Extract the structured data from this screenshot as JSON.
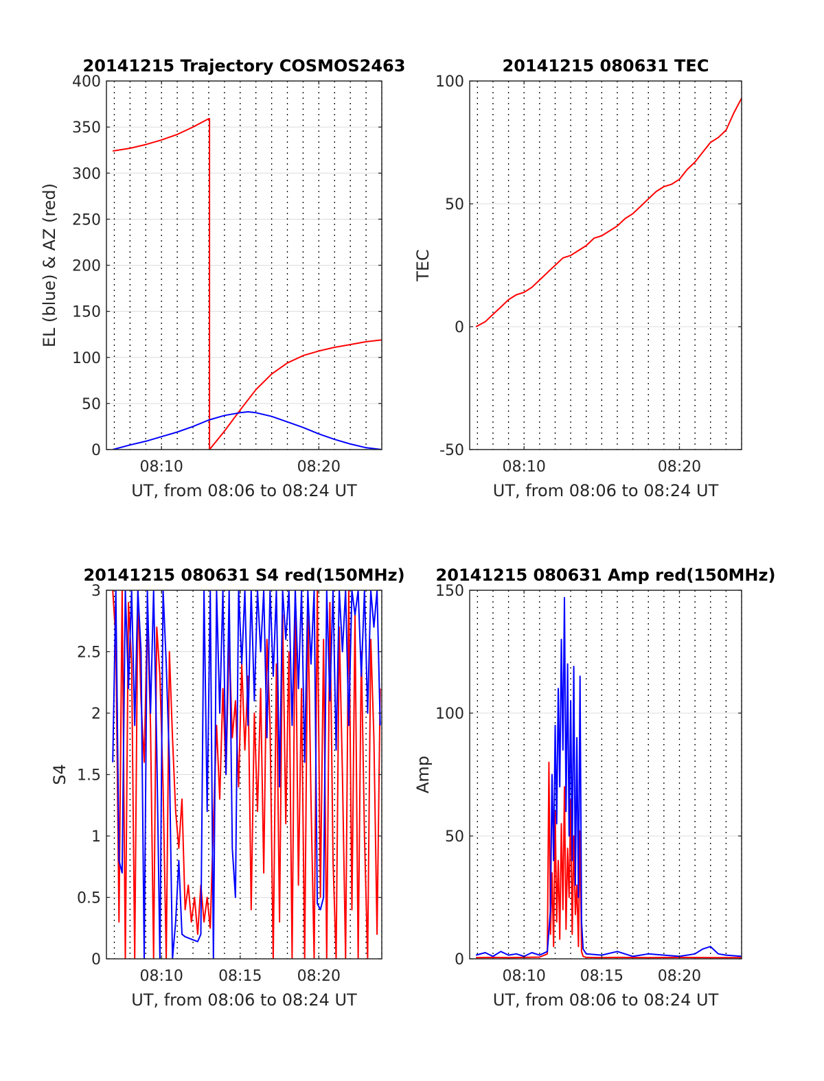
{
  "chart_data": [
    {
      "type": "line",
      "title": "20141215 Trajectory COSMOS2463",
      "xlabel": "UT, from 08:06 to 08:24 UT",
      "ylabel": "EL (blue) & AZ (red)",
      "xlim": [
        6.5,
        24
      ],
      "ylim": [
        0,
        400
      ],
      "xtick_values": [
        10,
        20
      ],
      "xtick_labels": [
        "08:10",
        "08:20"
      ],
      "ytick_values": [
        0,
        50,
        100,
        150,
        200,
        250,
        300,
        350,
        400
      ],
      "ytick_labels": [
        "0",
        "50",
        "100",
        "150",
        "200",
        "250",
        "300",
        "350",
        "400"
      ],
      "grid": true,
      "colors": {
        "EL": "#0000ff",
        "AZ": "#ff0000"
      },
      "series": [
        {
          "key": "AZ",
          "color": "#ff0000",
          "x": [
            6.9,
            8,
            9,
            10,
            11,
            12,
            13.0,
            13.05,
            13.05,
            14,
            15,
            16,
            17,
            18,
            19,
            20,
            21,
            22,
            23,
            24
          ],
          "y": [
            324,
            327,
            331,
            336,
            342,
            350,
            359,
            359,
            0,
            20,
            43,
            65,
            82,
            94,
            102,
            107,
            111,
            114,
            117,
            119
          ]
        },
        {
          "key": "EL",
          "color": "#0000ff",
          "x": [
            6.9,
            8,
            9,
            10,
            11,
            12,
            13,
            14,
            15,
            15.5,
            16,
            17,
            18,
            19,
            20,
            21,
            22,
            23,
            24
          ],
          "y": [
            0,
            5,
            9,
            14,
            19,
            25,
            32,
            37,
            40,
            41,
            40,
            36,
            30,
            24,
            17,
            11,
            6,
            2,
            0
          ]
        }
      ]
    },
    {
      "type": "line",
      "title": "20141215 080631 TEC",
      "xlabel": "UT, from 08:06 to 08:24 UT",
      "ylabel": "TEC",
      "xlim": [
        6.5,
        24
      ],
      "ylim": [
        -50,
        100
      ],
      "xtick_values": [
        10,
        20
      ],
      "xtick_labels": [
        "08:10",
        "08:20"
      ],
      "ytick_values": [
        -50,
        0,
        50,
        100
      ],
      "ytick_labels": [
        "-50",
        "0",
        "50",
        "100"
      ],
      "grid": true,
      "series": [
        {
          "color": "#ff0000",
          "x": [
            6.9,
            7.5,
            8,
            8.5,
            9,
            9.5,
            10,
            10.5,
            11,
            11.5,
            12,
            12.5,
            13,
            13.5,
            14,
            14.5,
            15,
            15.5,
            16,
            16.5,
            17,
            17.5,
            18,
            18.5,
            19,
            19.5,
            20,
            20.5,
            21,
            21.5,
            22,
            22.5,
            23,
            23.5,
            24
          ],
          "y": [
            0,
            2,
            5,
            8,
            11,
            13,
            14,
            16,
            19,
            22,
            25,
            28,
            29,
            31,
            33,
            36,
            37,
            39,
            41,
            44,
            46,
            49,
            52,
            55,
            57,
            58,
            60,
            64,
            67,
            71,
            75,
            77,
            80,
            87,
            93
          ]
        }
      ]
    },
    {
      "type": "line",
      "title": "20141215 080631 S4 red(150MHz)",
      "xlabel": "UT, from 08:06 to 08:24 UT",
      "ylabel": "S4",
      "xlim": [
        6.5,
        24
      ],
      "ylim": [
        0,
        3
      ],
      "xtick_values": [
        10,
        15,
        20
      ],
      "xtick_labels": [
        "08:10",
        "08:15",
        "08:20"
      ],
      "ytick_values": [
        0,
        0.5,
        1,
        1.5,
        2,
        2.5,
        3
      ],
      "ytick_labels": [
        "0",
        "0.5",
        "1",
        "1.5",
        "2",
        "2.5",
        "3"
      ],
      "grid": true,
      "series": [
        {
          "color": "#ff0000",
          "x": [
            6.9,
            7.1,
            7.3,
            7.5,
            7.7,
            7.9,
            8.1,
            8.3,
            8.5,
            8.7,
            8.9,
            9.1,
            9.3,
            9.5,
            9.7,
            9.9,
            10.1,
            10.3,
            10.5,
            10.7,
            10.9,
            11.1,
            11.3,
            11.5,
            11.7,
            11.9,
            12.1,
            12.3,
            12.5,
            12.7,
            12.9,
            13.1,
            13.3,
            13.5,
            13.7,
            13.9,
            14.1,
            14.3,
            14.5,
            14.7,
            14.9,
            15.1,
            15.3,
            15.5,
            15.7,
            15.9,
            16.1,
            16.3,
            16.5,
            16.7,
            16.9,
            17.1,
            17.3,
            17.5,
            17.7,
            17.9,
            18.1,
            18.3,
            18.5,
            18.7,
            18.9,
            19.1,
            19.3,
            19.5,
            19.7,
            19.9,
            20.1,
            20.3,
            20.5,
            20.7,
            20.9,
            21.1,
            21.3,
            21.5,
            21.7,
            21.9,
            22.1,
            22.3,
            22.5,
            22.7,
            22.9,
            23.1,
            23.3,
            23.5,
            23.7,
            23.9
          ],
          "y": [
            3,
            2.6,
            0.3,
            3,
            0,
            2.9,
            2.4,
            0,
            3,
            2.1,
            1.6,
            2.8,
            1.9,
            0,
            2.7,
            2.3,
            1.4,
            0,
            2.5,
            1.8,
            1.2,
            0.9,
            1.3,
            0.4,
            0.6,
            0.3,
            0.5,
            0.2,
            0.6,
            0.3,
            0.5,
            0.25,
            1.1,
            1.9,
            1.3,
            2.2,
            1.5,
            2.6,
            1.8,
            2.1,
            1.4,
            2.4,
            1.7,
            2.3,
            0.4,
            2.0,
            1.2,
            2.2,
            0.7,
            2.6,
            1.9,
            0,
            2.4,
            0.3,
            2.8,
            1.1,
            2.5,
            0,
            3,
            0.6,
            2.2,
            0,
            2.9,
            1.3,
            0,
            3,
            0.5,
            2.6,
            0,
            2.9,
            0.8,
            0,
            2.7,
            1.5,
            0,
            3,
            0.4,
            2.8,
            0,
            2.5,
            1.0,
            0,
            2.6,
            1.8,
            0.2,
            2.2
          ]
        },
        {
          "color": "#0000ff",
          "x": [
            6.9,
            7.1,
            7.3,
            7.5,
            7.7,
            7.9,
            8.1,
            8.3,
            8.5,
            8.7,
            8.9,
            9.1,
            9.3,
            9.5,
            9.7,
            9.9,
            10.1,
            10.3,
            10.5,
            10.7,
            10.9,
            11.1,
            11.3,
            11.5,
            11.7,
            11.9,
            12.1,
            12.3,
            12.5,
            12.7,
            12.9,
            13.1,
            13.3,
            13.5,
            13.7,
            13.9,
            14.1,
            14.3,
            14.5,
            14.7,
            14.9,
            15.1,
            15.3,
            15.5,
            15.7,
            15.9,
            16.1,
            16.3,
            16.5,
            16.7,
            16.9,
            17.1,
            17.3,
            17.5,
            17.7,
            17.9,
            18.1,
            18.3,
            18.5,
            18.7,
            18.9,
            19.1,
            19.3,
            19.5,
            19.7,
            19.9,
            20.1,
            20.3,
            20.5,
            20.7,
            20.9,
            21.1,
            21.3,
            21.5,
            21.7,
            21.9,
            22.1,
            22.3,
            22.5,
            22.7,
            22.9,
            23.1,
            23.3,
            23.5,
            23.7,
            23.9
          ],
          "y": [
            1.6,
            3,
            0.8,
            0.7,
            3,
            2.2,
            3,
            1.9,
            3,
            2.5,
            0,
            3,
            2.0,
            3,
            1.7,
            0,
            3,
            2.4,
            1.6,
            0,
            0.3,
            0.8,
            0.2,
            0.18,
            0.17,
            0.16,
            0.15,
            0.14,
            0.2,
            3,
            1.2,
            3,
            0,
            3,
            2.0,
            3,
            1.5,
            3,
            0.9,
            0.5,
            3,
            2.4,
            3,
            1.9,
            3,
            2.1,
            3,
            2.5,
            3,
            1.8,
            3,
            2.3,
            3,
            1.4,
            3,
            2.6,
            3,
            1.9,
            3,
            2.2,
            3,
            1.6,
            3,
            2.4,
            3,
            0.45,
            0.4,
            0.5,
            3,
            2.1,
            3,
            1.7,
            3,
            2.5,
            3,
            1.9,
            3,
            2.8,
            3,
            2.3,
            3,
            2.0,
            3,
            2.7,
            3,
            1.9
          ]
        }
      ]
    },
    {
      "type": "line",
      "title": "20141215 080631 Amp red(150MHz)",
      "xlabel": "UT, from 08:06 to 08:24 UT",
      "ylabel": "Amp",
      "xlim": [
        6.5,
        24
      ],
      "ylim": [
        0,
        150
      ],
      "xtick_values": [
        10,
        15,
        20
      ],
      "xtick_labels": [
        "08:10",
        "08:15",
        "08:20"
      ],
      "ytick_values": [
        0,
        50,
        100,
        150
      ],
      "ytick_labels": [
        "0",
        "50",
        "100",
        "150"
      ],
      "grid": true,
      "series": [
        {
          "color": "#ff0000",
          "x": [
            6.9,
            8,
            9,
            10,
            11,
            11.5,
            11.6,
            11.7,
            11.8,
            11.9,
            12.0,
            12.1,
            12.2,
            12.3,
            12.4,
            12.5,
            12.6,
            12.7,
            12.8,
            12.9,
            13.0,
            13.1,
            13.2,
            13.3,
            13.4,
            13.5,
            13.6,
            13.7,
            13.8,
            14,
            15,
            16,
            18,
            20,
            22,
            24
          ],
          "y": [
            0.5,
            0.6,
            0.5,
            0.6,
            0.7,
            2,
            80,
            10,
            35,
            5,
            60,
            15,
            40,
            8,
            55,
            20,
            70,
            12,
            45,
            25,
            65,
            10,
            50,
            18,
            30,
            5,
            52,
            3,
            1,
            0.6,
            0.5,
            0.6,
            0.5,
            0.6,
            0.5,
            0.5
          ]
        },
        {
          "color": "#0000ff",
          "x": [
            6.9,
            7.5,
            8,
            8.5,
            9,
            9.5,
            10,
            10.5,
            11,
            11.5,
            11.7,
            11.8,
            11.9,
            12.0,
            12.1,
            12.2,
            12.3,
            12.4,
            12.5,
            12.6,
            12.7,
            12.8,
            12.9,
            13.0,
            13.1,
            13.2,
            13.3,
            13.4,
            13.5,
            13.6,
            13.7,
            13.8,
            14,
            15,
            16,
            17,
            18,
            19,
            20,
            21,
            21.5,
            22,
            22.5,
            23,
            24
          ],
          "y": [
            1.5,
            2.5,
            1,
            3,
            1.5,
            2,
            1,
            2.5,
            1.5,
            3,
            20,
            75,
            40,
            95,
            55,
            110,
            70,
            130,
            85,
            147,
            60,
            120,
            50,
            105,
            40,
            119,
            30,
            90,
            25,
            115,
            15,
            4,
            2,
            1.5,
            3,
            1,
            2,
            1.5,
            1,
            2,
            4,
            5,
            2,
            1.5,
            1
          ]
        }
      ]
    }
  ]
}
